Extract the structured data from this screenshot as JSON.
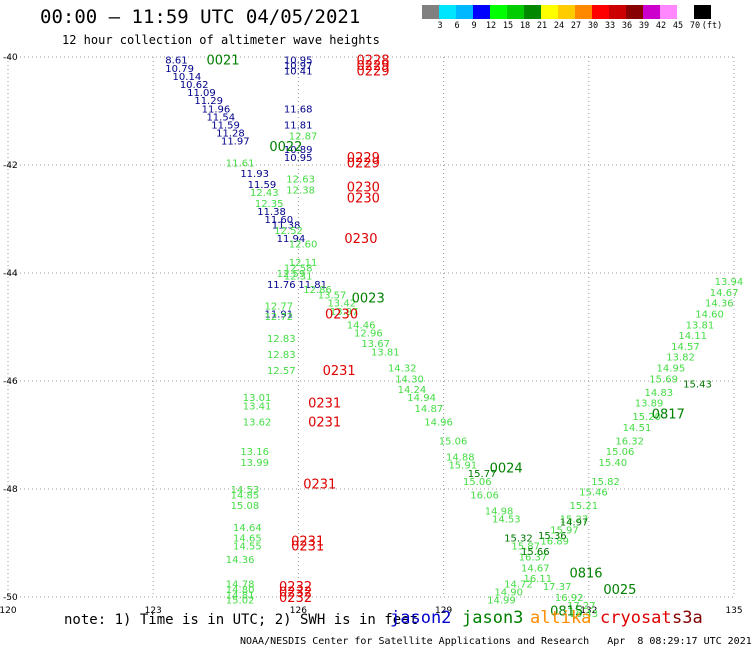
{
  "title": "00:00 – 11:59 UTC 04/05/2021",
  "subtitle": "12 hour collection of altimeter wave heights",
  "note": "note: 1) Time is in UTC; 2) SWH is in feet",
  "satellites": [
    {
      "name": "jason2",
      "color": "#0000cc"
    },
    {
      "name": "jason3",
      "color": "#008000"
    },
    {
      "name": "altika",
      "color": "#ff8c00"
    },
    {
      "name": "cryosat",
      "color": "#e00000"
    },
    {
      "name": "s3a",
      "color": "#800000"
    }
  ],
  "footer": "NOAA/NESDIS Center for Satellite Applications and Research   Apr  8 08:29:17 UTC 2021",
  "colorbar": {
    "colors": [
      "#808080",
      "#00e5ff",
      "#00b8ff",
      "#0000ff",
      "#00ff00",
      "#00cc00",
      "#008800",
      "#ffff00",
      "#ffcc00",
      "#ff8800",
      "#ff0000",
      "#cc0000",
      "#880000",
      "#cc00cc",
      "#ff88ff",
      "#ffffff",
      "#000000"
    ],
    "labels": [
      "3",
      "6",
      "9",
      "12",
      "15",
      "18",
      "21",
      "24",
      "27",
      "30",
      "33",
      "36",
      "39",
      "42",
      "45",
      "70",
      "(ft)"
    ]
  },
  "map": {
    "lon_range": [
      120,
      135
    ],
    "lat_range": [
      -50,
      -40
    ],
    "lon_ticks": [
      "120",
      "123",
      "126",
      "129",
      "132",
      "135"
    ],
    "lat_ticks": [
      "-40",
      "-42",
      "-44",
      "-46",
      "-48",
      "-50"
    ],
    "tracks": [
      {
        "color": "#00008b",
        "points": [
          [
            123.25,
            -40.05,
            "8.61"
          ],
          [
            123.25,
            -40.2,
            "10.79"
          ],
          [
            123.4,
            -40.35,
            "10.14"
          ],
          [
            123.55,
            -40.5,
            "10.62"
          ],
          [
            123.7,
            -40.65,
            "11.09"
          ],
          [
            123.85,
            -40.8,
            "11.29"
          ],
          [
            124.0,
            -40.95,
            "11.96"
          ],
          [
            124.1,
            -41.1,
            "11.54"
          ],
          [
            124.2,
            -41.25,
            "11.59"
          ],
          [
            124.3,
            -41.4,
            "11.28"
          ],
          [
            124.4,
            -41.55,
            "11.97"
          ],
          [
            124.8,
            -42.15,
            "11.93"
          ],
          [
            124.95,
            -42.35,
            "11.59"
          ],
          [
            125.15,
            -42.85,
            "11.38"
          ],
          [
            125.3,
            -43.0,
            "11.60"
          ],
          [
            125.45,
            -43.1,
            "11.38"
          ],
          [
            125.55,
            -43.35,
            "11.94"
          ],
          [
            125.35,
            -44.2,
            "11.76"
          ],
          [
            125.3,
            -44.75,
            "11.91"
          ],
          [
            126.0,
            -44.2,
            "11.81"
          ],
          [
            125.7,
            -40.05,
            "10.95"
          ],
          [
            125.7,
            -40.15,
            "10.97"
          ],
          [
            125.7,
            -40.25,
            "10.41"
          ],
          [
            125.7,
            -40.95,
            "11.68"
          ],
          [
            125.7,
            -41.25,
            "11.81"
          ],
          [
            125.7,
            -41.7,
            "10.89"
          ],
          [
            125.7,
            -41.85,
            "10.95"
          ]
        ]
      },
      {
        "color": "#44dd44",
        "points": [
          [
            124.5,
            -41.95,
            "11.61"
          ],
          [
            125.0,
            -42.5,
            "12.43"
          ],
          [
            125.1,
            -42.7,
            "12.35"
          ],
          [
            125.5,
            -43.2,
            "12.52"
          ],
          [
            125.8,
            -43.45,
            "12.60"
          ],
          [
            125.8,
            -43.8,
            "12.11"
          ],
          [
            125.7,
            -43.9,
            "12.58"
          ],
          [
            125.55,
            -44.0,
            "12.59"
          ],
          [
            125.7,
            -44.05,
            "12.31"
          ],
          [
            125.3,
            -44.6,
            "12.77"
          ],
          [
            125.3,
            -44.8,
            "12.72"
          ],
          [
            125.75,
            -42.25,
            "12.63"
          ],
          [
            125.75,
            -42.45,
            "12.38"
          ],
          [
            125.8,
            -41.45,
            "12.87"
          ],
          [
            126.1,
            -44.3,
            "12.86"
          ],
          [
            125.35,
            -45.2,
            "12.83"
          ],
          [
            125.35,
            -45.5,
            "12.83"
          ],
          [
            125.35,
            -45.8,
            "12.57"
          ],
          [
            124.85,
            -46.3,
            "13.01"
          ],
          [
            124.85,
            -46.45,
            "13.41"
          ],
          [
            124.85,
            -46.75,
            "13.62"
          ],
          [
            124.8,
            -47.3,
            "13.16"
          ],
          [
            124.8,
            -47.5,
            "13.99"
          ],
          [
            124.6,
            -48.0,
            "14.53"
          ],
          [
            124.6,
            -48.1,
            "14.85"
          ],
          [
            124.6,
            -48.3,
            "15.08"
          ],
          [
            124.65,
            -48.7,
            "14.64"
          ],
          [
            124.65,
            -48.9,
            "14.65"
          ],
          [
            124.65,
            -49.05,
            "14.55"
          ],
          [
            124.5,
            -49.3,
            "14.36"
          ],
          [
            124.5,
            -49.75,
            "14.78"
          ],
          [
            124.5,
            -49.85,
            "14.80"
          ],
          [
            124.5,
            -49.95,
            "14.81"
          ],
          [
            124.5,
            -50.05,
            "15.02"
          ],
          [
            126.4,
            -44.4,
            "13.57"
          ],
          [
            126.6,
            -44.55,
            "13.42"
          ],
          [
            126.65,
            -44.7,
            "13.97"
          ],
          [
            127.0,
            -44.95,
            "14.46"
          ],
          [
            127.15,
            -45.1,
            "12.96"
          ],
          [
            127.3,
            -45.3,
            "13.67"
          ],
          [
            127.5,
            -45.45,
            "13.81"
          ],
          [
            127.85,
            -45.75,
            "14.32"
          ],
          [
            128.0,
            -45.95,
            "14.30"
          ],
          [
            128.05,
            -46.15,
            "14.24"
          ],
          [
            128.25,
            -46.3,
            "14.94"
          ],
          [
            128.4,
            -46.5,
            "14.87"
          ],
          [
            128.6,
            -46.75,
            "14.96"
          ],
          [
            128.9,
            -47.1,
            "15.06"
          ],
          [
            129.05,
            -47.4,
            "14.88"
          ],
          [
            129.1,
            -47.55,
            "15.91"
          ],
          [
            129.4,
            -47.85,
            "15.06"
          ],
          [
            129.55,
            -48.1,
            "16.06"
          ],
          [
            129.85,
            -48.4,
            "14.98"
          ],
          [
            130.0,
            -48.55,
            "14.53"
          ],
          [
            130.4,
            -49.05,
            "15.87"
          ],
          [
            130.55,
            -49.25,
            "16.37"
          ],
          [
            130.6,
            -49.45,
            "14.67"
          ],
          [
            130.25,
            -49.75,
            "14.72"
          ],
          [
            130.05,
            -49.9,
            "14.90"
          ],
          [
            129.9,
            -50.05,
            "14.99"
          ],
          [
            130.65,
            -49.65,
            "16.11"
          ],
          [
            131.05,
            -49.8,
            "17.37"
          ],
          [
            131.3,
            -50.0,
            "16.92"
          ],
          [
            131.55,
            -50.15,
            "17.27"
          ],
          [
            131.6,
            -50.3,
            "16.43"
          ],
          [
            131.0,
            -48.95,
            "16.89"
          ],
          [
            131.2,
            -48.75,
            "15.97"
          ],
          [
            131.4,
            -48.55,
            "15.27"
          ],
          [
            131.6,
            -48.3,
            "15.21"
          ],
          [
            131.8,
            -48.05,
            "15.46"
          ],
          [
            132.05,
            -47.85,
            "15.82"
          ],
          [
            132.2,
            -47.5,
            "15.40"
          ],
          [
            132.35,
            -47.3,
            "15.06"
          ],
          [
            132.55,
            -47.1,
            "16.32"
          ],
          [
            132.7,
            -46.85,
            "14.51"
          ],
          [
            132.9,
            -46.65,
            "15.20"
          ],
          [
            132.95,
            -46.4,
            "13.89"
          ],
          [
            133.15,
            -46.2,
            "14.83"
          ],
          [
            133.25,
            -45.95,
            "15.69"
          ],
          [
            133.4,
            -45.75,
            "14.95"
          ],
          [
            133.6,
            -45.55,
            "13.82"
          ],
          [
            133.7,
            -45.35,
            "14.57"
          ],
          [
            133.85,
            -45.15,
            "14.11"
          ],
          [
            134.0,
            -44.95,
            "13.81"
          ],
          [
            134.2,
            -44.75,
            "14.60"
          ],
          [
            134.4,
            -44.55,
            "14.36"
          ],
          [
            134.5,
            -44.35,
            "14.67"
          ],
          [
            134.6,
            -44.15,
            "13.94"
          ]
        ]
      },
      {
        "color": "#007700",
        "points": [
          [
            129.5,
            -47.7,
            "15.77"
          ],
          [
            130.25,
            -48.9,
            "15.32"
          ],
          [
            130.6,
            -49.15,
            "15.66"
          ],
          [
            130.95,
            -48.85,
            "15.36"
          ],
          [
            131.4,
            -48.6,
            "14.97"
          ],
          [
            133.95,
            -46.05,
            "15.43"
          ]
        ]
      }
    ],
    "time_labels": [
      {
        "lon": 124.1,
        "lat": -40.05,
        "text": "0021",
        "color": "#008000"
      },
      {
        "lon": 125.4,
        "lat": -41.65,
        "text": "0022",
        "color": "#008000"
      },
      {
        "lon": 127.1,
        "lat": -44.45,
        "text": "0023",
        "color": "#008000"
      },
      {
        "lon": 129.95,
        "lat": -47.6,
        "text": "0024",
        "color": "#008000"
      },
      {
        "lon": 133.3,
        "lat": -46.6,
        "text": "0817",
        "color": "#008000"
      },
      {
        "lon": 131.6,
        "lat": -49.55,
        "text": "0816",
        "color": "#008000"
      },
      {
        "lon": 132.3,
        "lat": -49.85,
        "text": "0025",
        "color": "#008000"
      },
      {
        "lon": 131.2,
        "lat": -50.25,
        "text": "0815",
        "color": "#008000"
      },
      {
        "lon": 127.2,
        "lat": -40.05,
        "text": "0228",
        "color": "#e00000"
      },
      {
        "lon": 127.2,
        "lat": -40.15,
        "text": "0229",
        "color": "#e00000"
      },
      {
        "lon": 127.2,
        "lat": -40.25,
        "text": "0229",
        "color": "#e00000"
      },
      {
        "lon": 127.0,
        "lat": -41.85,
        "text": "0229",
        "color": "#e00000"
      },
      {
        "lon": 127.0,
        "lat": -41.95,
        "text": "0229",
        "color": "#e00000"
      },
      {
        "lon": 127.0,
        "lat": -42.4,
        "text": "0230",
        "color": "#e00000"
      },
      {
        "lon": 127.0,
        "lat": -42.6,
        "text": "0230",
        "color": "#e00000"
      },
      {
        "lon": 126.95,
        "lat": -43.35,
        "text": "0230",
        "color": "#e00000"
      },
      {
        "lon": 126.55,
        "lat": -44.75,
        "text": "0230",
        "color": "#e00000"
      },
      {
        "lon": 126.5,
        "lat": -45.8,
        "text": "0231",
        "color": "#e00000"
      },
      {
        "lon": 126.2,
        "lat": -46.4,
        "text": "0231",
        "color": "#e00000"
      },
      {
        "lon": 126.2,
        "lat": -46.75,
        "text": "0231",
        "color": "#e00000"
      },
      {
        "lon": 126.1,
        "lat": -47.9,
        "text": "0231",
        "color": "#e00000"
      },
      {
        "lon": 125.85,
        "lat": -48.95,
        "text": "0231",
        "color": "#e00000"
      },
      {
        "lon": 125.85,
        "lat": -49.05,
        "text": "0231",
        "color": "#e00000"
      },
      {
        "lon": 125.6,
        "lat": -49.8,
        "text": "0232",
        "color": "#e00000"
      },
      {
        "lon": 125.6,
        "lat": -49.9,
        "text": "0232",
        "color": "#e00000"
      },
      {
        "lon": 125.6,
        "lat": -50.0,
        "text": "0232",
        "color": "#e00000"
      }
    ]
  }
}
